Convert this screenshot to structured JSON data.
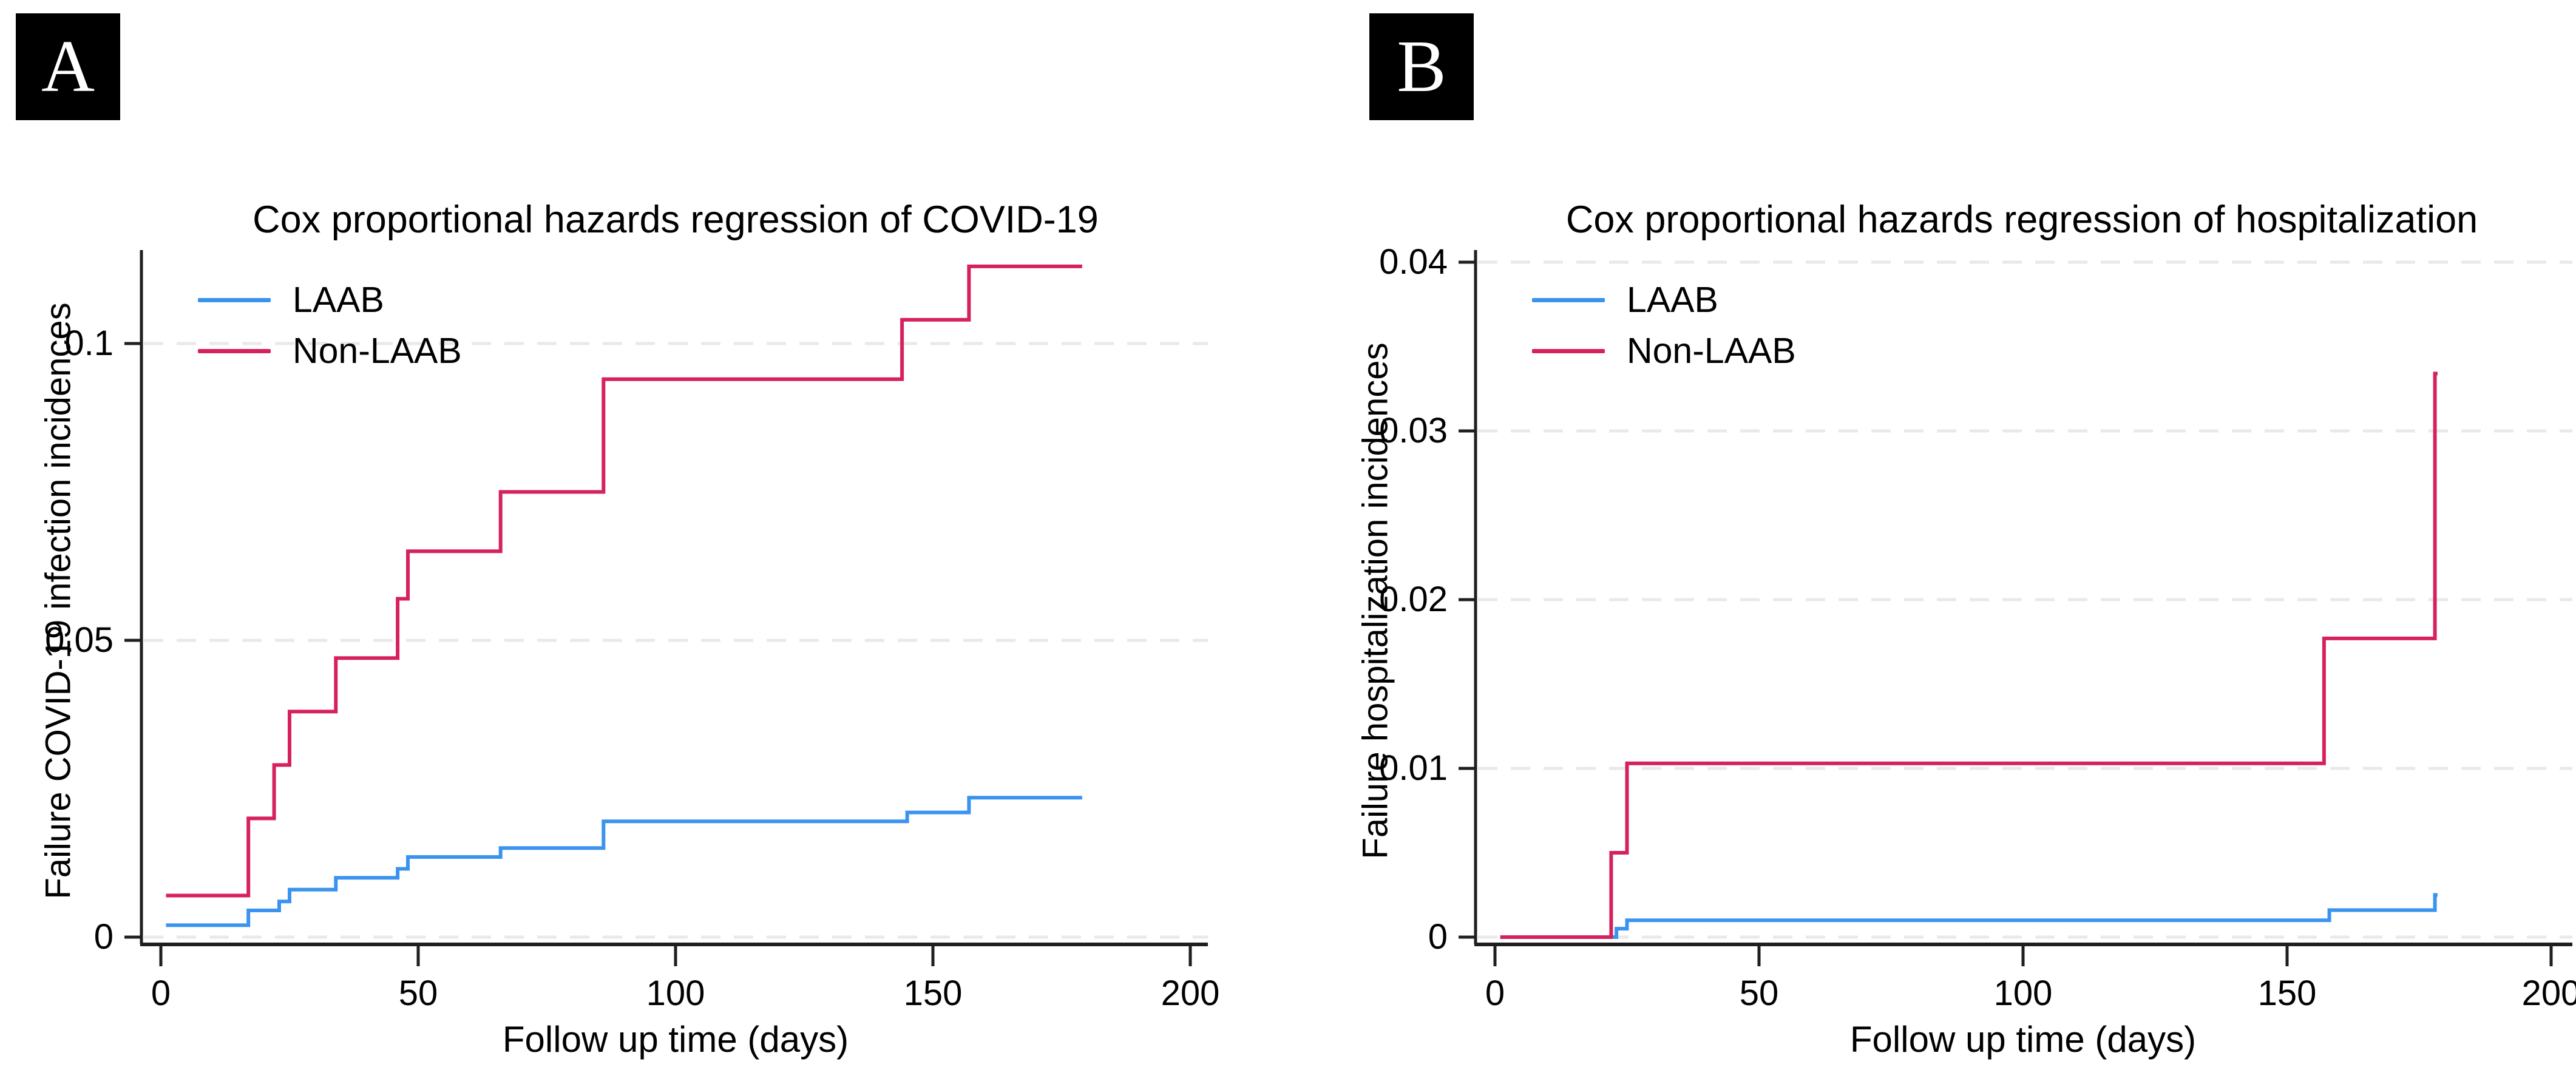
{
  "figure": {
    "background": "#ffffff",
    "palette": {
      "laab_blue": "#3a94ef",
      "non_laab_red": "#d6215f",
      "grid_gray": "#e9e9e9",
      "axis_dark": "#1f1f1f",
      "text_black": "#000000",
      "panel_box_black": "#000000",
      "panel_letter_white": "#ffffff"
    }
  },
  "chart_data": [
    {
      "panel_letter": "A",
      "type": "step",
      "title": "Cox proportional hazards regression of COVID-19",
      "xlabel": "Follow up time (days)",
      "ylabel": "Failure COVID-19 infection incidences",
      "xlim": [
        0,
        200
      ],
      "ylim": [
        0,
        0.115
      ],
      "grid": "horizontal-dashed",
      "legend_position": "top-left",
      "x_ticks": [
        {
          "value": 0,
          "label": "0"
        },
        {
          "value": 50,
          "label": "50"
        },
        {
          "value": 100,
          "label": "100"
        },
        {
          "value": 150,
          "label": "150"
        },
        {
          "value": 200,
          "label": "200"
        }
      ],
      "y_ticks": [
        {
          "value": 0,
          "label": "0"
        },
        {
          "value": 0.05,
          "label": "0.05"
        },
        {
          "value": 0.1,
          "label": "0.1"
        }
      ],
      "legend": [
        {
          "label": "LAAB",
          "color": "#3a94ef"
        },
        {
          "label": "Non-LAAB",
          "color": "#d6215f"
        }
      ],
      "series": [
        {
          "name": "LAAB",
          "color": "#3a94ef",
          "end_day": 179,
          "points": [
            [
              1,
              0.002
            ],
            [
              17,
              0.0045
            ],
            [
              23,
              0.006
            ],
            [
              25,
              0.008
            ],
            [
              34,
              0.01
            ],
            [
              46,
              0.0115
            ],
            [
              48,
              0.0135
            ],
            [
              66,
              0.015
            ],
            [
              86,
              0.0195
            ],
            [
              145,
              0.021
            ],
            [
              157,
              0.0235
            ]
          ]
        },
        {
          "name": "Non-LAAB",
          "color": "#d6215f",
          "end_day": 179,
          "points": [
            [
              1,
              0.007
            ],
            [
              17,
              0.02
            ],
            [
              22,
              0.029
            ],
            [
              25,
              0.038
            ],
            [
              34,
              0.047
            ],
            [
              46,
              0.057
            ],
            [
              48,
              0.065
            ],
            [
              66,
              0.075
            ],
            [
              86,
              0.094
            ],
            [
              144,
              0.104
            ],
            [
              157,
              0.113
            ]
          ]
        }
      ]
    },
    {
      "panel_letter": "B",
      "type": "step",
      "title": "Cox proportional hazards regression of hospitalization",
      "xlabel": "Follow up time (days)",
      "ylabel": "Failure hospitalization incidences",
      "xlim": [
        0,
        200
      ],
      "ylim": [
        0,
        0.04
      ],
      "grid": "horizontal-dashed",
      "legend_position": "top-left",
      "x_ticks": [
        {
          "value": 0,
          "label": "0"
        },
        {
          "value": 50,
          "label": "50"
        },
        {
          "value": 100,
          "label": "100"
        },
        {
          "value": 150,
          "label": "150"
        },
        {
          "value": 200,
          "label": "200"
        }
      ],
      "y_ticks": [
        {
          "value": 0,
          "label": "0"
        },
        {
          "value": 0.01,
          "label": "0.01"
        },
        {
          "value": 0.02,
          "label": "0.02"
        },
        {
          "value": 0.03,
          "label": "0.03"
        },
        {
          "value": 0.04,
          "label": "0.04"
        }
      ],
      "legend": [
        {
          "label": "LAAB",
          "color": "#3a94ef"
        },
        {
          "label": "Non-LAAB",
          "color": "#d6215f"
        }
      ],
      "series": [
        {
          "name": "LAAB",
          "color": "#3a94ef",
          "end_day": 178.5,
          "points": [
            [
              1,
              0
            ],
            [
              23,
              0.0005
            ],
            [
              25,
              0.001
            ],
            [
              158,
              0.0016
            ],
            [
              178,
              0.0025
            ]
          ]
        },
        {
          "name": "Non-LAAB",
          "color": "#d6215f",
          "end_day": 178.5,
          "points": [
            [
              1,
              0
            ],
            [
              22,
              0.005
            ],
            [
              25,
              0.0103
            ],
            [
              157,
              0.0177
            ],
            [
              178,
              0.0334
            ]
          ]
        }
      ]
    }
  ]
}
